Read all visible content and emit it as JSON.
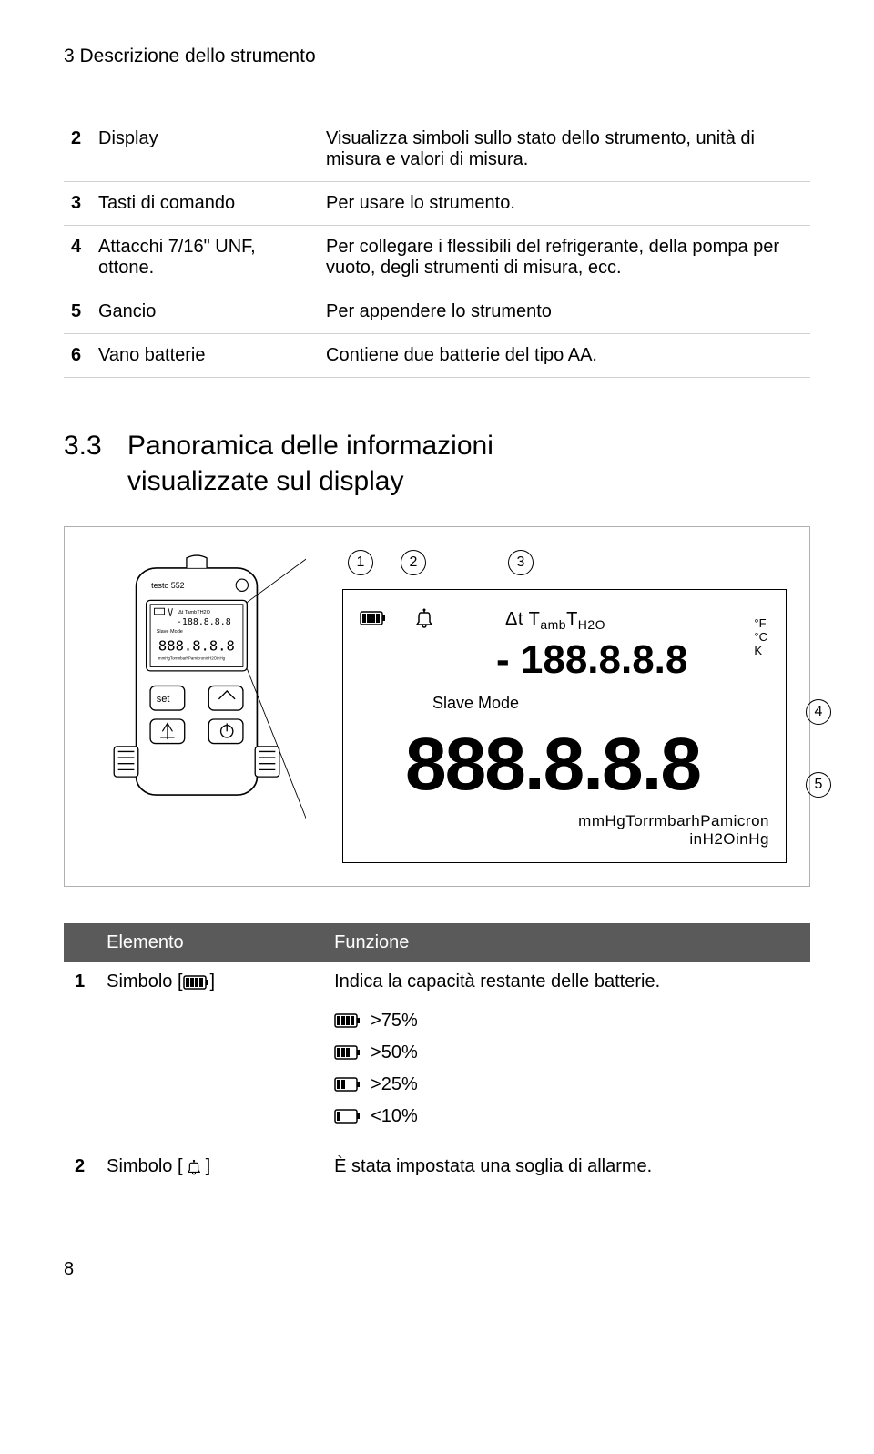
{
  "header": "3 Descrizione dello strumento",
  "device_table": {
    "rows": [
      {
        "num": "2",
        "name": "Display",
        "desc": "Visualizza simboli sullo stato dello strumento, unità di misura e valori di misura."
      },
      {
        "num": "3",
        "name": "Tasti di comando",
        "desc": "Per usare lo strumento."
      },
      {
        "num": "4",
        "name": "Attacchi 7/16\" UNF, ottone.",
        "desc": "Per collegare i flessibili del refrigerante, della pompa per vuoto, degli strumenti di misura, ecc."
      },
      {
        "num": "5",
        "name": "Gancio",
        "desc": "Per appendere lo strumento"
      },
      {
        "num": "6",
        "name": "Vano batterie",
        "desc": "Contiene due batterie del tipo AA."
      }
    ]
  },
  "section": {
    "number": "3.3",
    "title_line1": "Panoramica delle informazioni",
    "title_line2": "visualizzate sul display"
  },
  "diagram": {
    "callouts_top": [
      "1",
      "2",
      "3"
    ],
    "callouts_side": [
      "4",
      "5"
    ],
    "dt_text": "Δt T",
    "dt_sub1": "amb",
    "dt_mid": "T",
    "dt_sub2": "H2O",
    "units_small": [
      "°F",
      "°C",
      "K"
    ],
    "slave_mode": "Slave Mode",
    "bottom_units_line1": "mmHgTorrmbarhPamicron",
    "bottom_units_line2": "inH2OinHg",
    "digit_color": "#000000",
    "background": "#ffffff"
  },
  "elem_table": {
    "headers": [
      "",
      "Elemento",
      "Funzione"
    ],
    "rows": [
      {
        "num": "1",
        "elemento_prefix": "Simbolo [",
        "elemento_suffix": "]",
        "funzione": "Indica la capacità restante delle batterie.",
        "icon": "battery-full",
        "battery_levels": [
          {
            "bars": 4,
            "label": ">75%"
          },
          {
            "bars": 3,
            "label": ">50%"
          },
          {
            "bars": 2,
            "label": ">25%"
          },
          {
            "bars": 1,
            "label": "<10%"
          }
        ]
      },
      {
        "num": "2",
        "elemento_prefix": "Simbolo [ ",
        "elemento_suffix": " ]",
        "funzione": "È stata impostata una soglia di allarme.",
        "icon": "bell"
      }
    ]
  },
  "page_number": "8",
  "colors": {
    "text": "#000000",
    "table_header_bg": "#5a5a5a",
    "table_header_fg": "#ffffff",
    "border": "#b0b0b0",
    "row_border": "#d0d0d0"
  }
}
